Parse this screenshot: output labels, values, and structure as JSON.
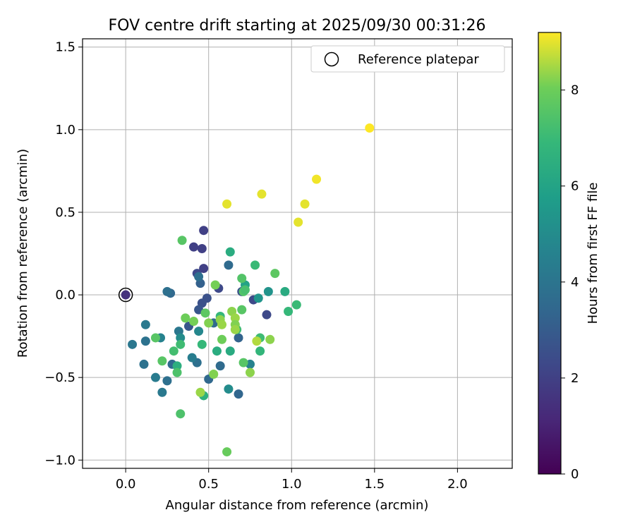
{
  "chart_data": {
    "type": "scatter",
    "title": "FOV centre drift starting at 2025/09/30 00:31:26",
    "xlabel": "Angular distance from reference (arcmin)",
    "ylabel": "Rotation from reference (arcmin)",
    "xlim": [
      -0.26,
      2.33
    ],
    "ylim": [
      -1.05,
      1.55
    ],
    "xticks": [
      0.0,
      0.5,
      1.0,
      1.5,
      2.0
    ],
    "xtick_labels": [
      "0.0",
      "0.5",
      "1.0",
      "1.5",
      "2.0"
    ],
    "yticks": [
      -1.0,
      -0.5,
      0.0,
      0.5,
      1.0,
      1.5
    ],
    "ytick_labels": [
      "−1.0",
      "−0.5",
      "0.0",
      "0.5",
      "1.0",
      "1.5"
    ],
    "grid": true,
    "legend": {
      "label": "Reference platepar",
      "location": "top-right"
    },
    "reference_point": {
      "x": 0.0,
      "y": 0.0,
      "marker": "open-circle",
      "color": "#000000"
    },
    "colorbar": {
      "label": "Hours from first FF file",
      "colormap": "viridis",
      "range": [
        0,
        9.2
      ],
      "ticks": [
        0,
        2,
        4,
        6,
        8
      ],
      "tick_labels": [
        "0",
        "2",
        "4",
        "6",
        "8"
      ]
    },
    "points": [
      {
        "x": 0.0,
        "y": 0.0,
        "t": 1.5
      },
      {
        "x": 0.47,
        "y": 0.39,
        "t": 2.0
      },
      {
        "x": 0.41,
        "y": 0.29,
        "t": 2.0
      },
      {
        "x": 0.46,
        "y": 0.28,
        "t": 2.0
      },
      {
        "x": 0.47,
        "y": 0.16,
        "t": 2.0
      },
      {
        "x": 0.43,
        "y": 0.13,
        "t": 2.3
      },
      {
        "x": 0.56,
        "y": 0.04,
        "t": 2.3
      },
      {
        "x": 0.49,
        "y": -0.02,
        "t": 2.6
      },
      {
        "x": 0.46,
        "y": -0.05,
        "t": 2.6
      },
      {
        "x": 0.44,
        "y": -0.09,
        "t": 2.8
      },
      {
        "x": 0.38,
        "y": -0.19,
        "t": 2.8
      },
      {
        "x": 0.85,
        "y": -0.12,
        "t": 2.3
      },
      {
        "x": 0.77,
        "y": -0.03,
        "t": 2.3
      },
      {
        "x": 0.7,
        "y": 0.02,
        "t": 2.6
      },
      {
        "x": 0.45,
        "y": 0.07,
        "t": 3.2
      },
      {
        "x": 0.44,
        "y": 0.11,
        "t": 3.8
      },
      {
        "x": 0.62,
        "y": 0.18,
        "t": 3.6
      },
      {
        "x": 0.27,
        "y": 0.01,
        "t": 3.5
      },
      {
        "x": 0.25,
        "y": 0.02,
        "t": 3.8
      },
      {
        "x": 0.04,
        "y": -0.3,
        "t": 4.1
      },
      {
        "x": 0.12,
        "y": -0.28,
        "t": 3.9
      },
      {
        "x": 0.12,
        "y": -0.18,
        "t": 4.2
      },
      {
        "x": 0.11,
        "y": -0.42,
        "t": 3.9
      },
      {
        "x": 0.18,
        "y": -0.5,
        "t": 4.3
      },
      {
        "x": 0.25,
        "y": -0.52,
        "t": 3.8
      },
      {
        "x": 0.22,
        "y": -0.59,
        "t": 4.2
      },
      {
        "x": 0.28,
        "y": -0.42,
        "t": 3.5
      },
      {
        "x": 0.43,
        "y": -0.41,
        "t": 3.8
      },
      {
        "x": 0.4,
        "y": -0.38,
        "t": 4.4
      },
      {
        "x": 0.5,
        "y": -0.51,
        "t": 3.5
      },
      {
        "x": 0.57,
        "y": -0.43,
        "t": 3.6
      },
      {
        "x": 0.68,
        "y": -0.6,
        "t": 3.4
      },
      {
        "x": 0.68,
        "y": -0.26,
        "t": 3.3
      },
      {
        "x": 0.53,
        "y": -0.17,
        "t": 3.6
      },
      {
        "x": 0.32,
        "y": -0.22,
        "t": 4.1
      },
      {
        "x": 0.21,
        "y": -0.26,
        "t": 4.6
      },
      {
        "x": 0.33,
        "y": -0.26,
        "t": 5.0
      },
      {
        "x": 0.44,
        "y": -0.22,
        "t": 4.8
      },
      {
        "x": 0.62,
        "y": -0.57,
        "t": 5.0
      },
      {
        "x": 0.75,
        "y": -0.42,
        "t": 4.6
      },
      {
        "x": 0.86,
        "y": 0.02,
        "t": 5.3
      },
      {
        "x": 0.8,
        "y": -0.02,
        "t": 5.4
      },
      {
        "x": 0.72,
        "y": 0.06,
        "t": 6.0
      },
      {
        "x": 0.96,
        "y": 0.02,
        "t": 6.3
      },
      {
        "x": 0.63,
        "y": 0.26,
        "t": 6.4
      },
      {
        "x": 0.55,
        "y": -0.34,
        "t": 6.4
      },
      {
        "x": 0.63,
        "y": -0.34,
        "t": 6.3
      },
      {
        "x": 0.47,
        "y": -0.61,
        "t": 6.6
      },
      {
        "x": 0.31,
        "y": -0.43,
        "t": 6.5
      },
      {
        "x": 0.33,
        "y": -0.72,
        "t": 7.4
      },
      {
        "x": 0.22,
        "y": -0.4,
        "t": 7.6
      },
      {
        "x": 0.29,
        "y": -0.34,
        "t": 7.2
      },
      {
        "x": 0.31,
        "y": -0.47,
        "t": 7.4
      },
      {
        "x": 0.33,
        "y": -0.3,
        "t": 7.1
      },
      {
        "x": 0.18,
        "y": -0.26,
        "t": 7.6
      },
      {
        "x": 0.34,
        "y": 0.33,
        "t": 7.6
      },
      {
        "x": 0.46,
        "y": -0.3,
        "t": 6.9
      },
      {
        "x": 0.48,
        "y": -0.11,
        "t": 7.7
      },
      {
        "x": 0.57,
        "y": -0.13,
        "t": 6.9
      },
      {
        "x": 0.67,
        "y": -0.21,
        "t": 7.1
      },
      {
        "x": 0.71,
        "y": 0.02,
        "t": 7.5
      },
      {
        "x": 0.72,
        "y": 0.03,
        "t": 7.3
      },
      {
        "x": 0.78,
        "y": 0.18,
        "t": 7.0
      },
      {
        "x": 0.7,
        "y": 0.1,
        "t": 7.5
      },
      {
        "x": 0.7,
        "y": -0.09,
        "t": 7.6
      },
      {
        "x": 0.81,
        "y": -0.26,
        "t": 7.1
      },
      {
        "x": 0.81,
        "y": -0.34,
        "t": 6.8
      },
      {
        "x": 0.71,
        "y": -0.41,
        "t": 7.6
      },
      {
        "x": 0.9,
        "y": 0.13,
        "t": 7.7
      },
      {
        "x": 0.98,
        "y": -0.1,
        "t": 6.9
      },
      {
        "x": 1.03,
        "y": -0.06,
        "t": 7.0
      },
      {
        "x": 0.36,
        "y": -0.14,
        "t": 8.0
      },
      {
        "x": 0.41,
        "y": -0.16,
        "t": 8.1
      },
      {
        "x": 0.5,
        "y": -0.17,
        "t": 8.2
      },
      {
        "x": 0.54,
        "y": 0.06,
        "t": 8.1
      },
      {
        "x": 0.57,
        "y": -0.15,
        "t": 8.3
      },
      {
        "x": 0.58,
        "y": -0.18,
        "t": 8.4
      },
      {
        "x": 0.58,
        "y": -0.27,
        "t": 8.0
      },
      {
        "x": 0.64,
        "y": -0.1,
        "t": 8.3
      },
      {
        "x": 0.66,
        "y": -0.14,
        "t": 8.4
      },
      {
        "x": 0.66,
        "y": -0.18,
        "t": 8.2
      },
      {
        "x": 0.66,
        "y": -0.21,
        "t": 8.4
      },
      {
        "x": 0.53,
        "y": -0.48,
        "t": 8.2
      },
      {
        "x": 0.45,
        "y": -0.59,
        "t": 8.4
      },
      {
        "x": 0.61,
        "y": -0.95,
        "t": 7.9
      },
      {
        "x": 0.75,
        "y": -0.47,
        "t": 8.3
      },
      {
        "x": 0.79,
        "y": -0.28,
        "t": 8.6
      },
      {
        "x": 0.87,
        "y": -0.27,
        "t": 8.3
      },
      {
        "x": 0.61,
        "y": 0.55,
        "t": 9.0
      },
      {
        "x": 0.82,
        "y": 0.61,
        "t": 9.0
      },
      {
        "x": 1.04,
        "y": 0.44,
        "t": 9.0
      },
      {
        "x": 1.08,
        "y": 0.55,
        "t": 9.0
      },
      {
        "x": 1.15,
        "y": 0.7,
        "t": 9.1
      },
      {
        "x": 1.47,
        "y": 1.01,
        "t": 9.2
      }
    ]
  }
}
